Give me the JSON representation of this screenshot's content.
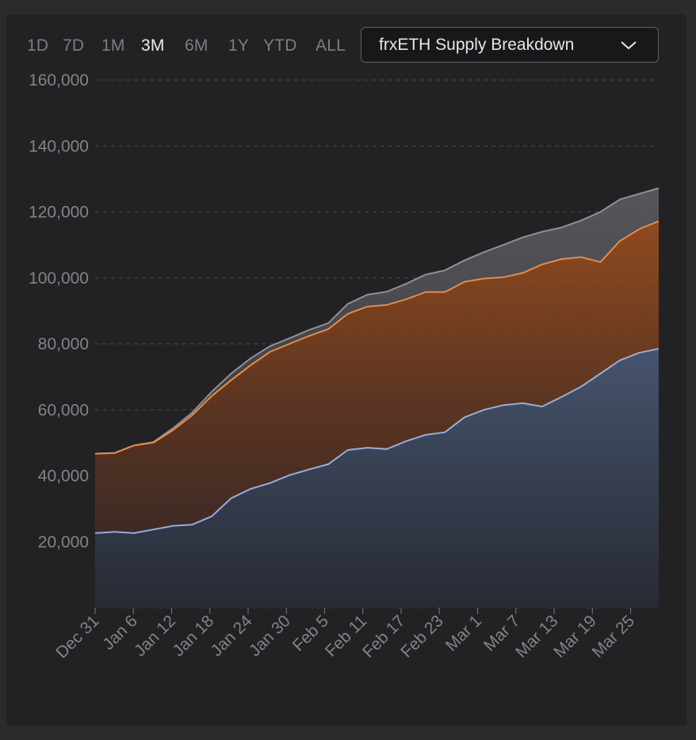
{
  "toolbar": {
    "ranges": [
      "1D",
      "7D",
      "1M",
      "3M",
      "6M",
      "1Y",
      "YTD",
      "ALL"
    ],
    "active_range": "3M",
    "dropdown": {
      "selected": "frxETH Supply Breakdown",
      "icon": "chevron-down-icon"
    }
  },
  "colors": {
    "background": "#222224",
    "total_line": "#909095",
    "total_fill": "#4a4a4e",
    "mid_line": "#f08a3c",
    "mid_fill": "#b25a22",
    "base_line": "#8fb0e6",
    "base_fill": "#3a4458",
    "grid": "#4a4a4f",
    "tick_text": "#838388"
  },
  "chart_data": {
    "type": "area",
    "stacked": true,
    "title": "",
    "xlabel": "",
    "ylabel": "",
    "ylim": [
      0,
      160000
    ],
    "y_ticks": [
      "20,000",
      "40,000",
      "60,000",
      "80,000",
      "100,000",
      "120,000",
      "140,000",
      "160,000"
    ],
    "y_tick_values": [
      20000,
      40000,
      60000,
      80000,
      100000,
      120000,
      140000,
      160000
    ],
    "x_tick_labels": [
      "Dec 31",
      "Jan 6",
      "Jan 12",
      "Jan 18",
      "Jan 24",
      "Jan 30",
      "Feb 5",
      "Feb 11",
      "Feb 17",
      "Feb 23",
      "Mar 1",
      "Mar 7",
      "Mar 13",
      "Mar 19",
      "Mar 25"
    ],
    "grid": "horizontal dashed",
    "legend": "none",
    "x": [
      "Dec 31",
      "Jan 3",
      "Jan 6",
      "Jan 9",
      "Jan 12",
      "Jan 15",
      "Jan 18",
      "Jan 21",
      "Jan 24",
      "Jan 27",
      "Jan 30",
      "Feb 2",
      "Feb 5",
      "Feb 8",
      "Feb 11",
      "Feb 14",
      "Feb 17",
      "Feb 20",
      "Feb 23",
      "Feb 26",
      "Mar 1",
      "Mar 4",
      "Mar 7",
      "Mar 10",
      "Mar 13",
      "Mar 16",
      "Mar 19",
      "Mar 22",
      "Mar 25",
      "Mar 28"
    ],
    "series": [
      {
        "values": [
          22600,
          23000,
          22600,
          23700,
          24800,
          25200,
          27700,
          33200,
          36000,
          37800,
          40200,
          41900,
          43500,
          47800,
          48500,
          48100,
          50500,
          52400,
          53200,
          57700,
          60000,
          61400,
          62000,
          61000,
          63900,
          67000,
          71000,
          75000,
          77300,
          78500
        ]
      },
      {
        "values": [
          46700,
          46900,
          49200,
          50100,
          53800,
          58400,
          64200,
          69000,
          73500,
          77600,
          80000,
          82400,
          84500,
          89100,
          91300,
          91800,
          93500,
          95700,
          95700,
          98800,
          99800,
          100200,
          101500,
          104100,
          105700,
          106300,
          104800,
          111200,
          114800,
          117200
        ]
      },
      {
        "values": [
          46700,
          46900,
          49200,
          50200,
          54400,
          59200,
          65500,
          71000,
          75600,
          79300,
          81700,
          84200,
          86300,
          92100,
          94900,
          95800,
          98200,
          101000,
          102300,
          105300,
          107800,
          110000,
          112300,
          114000,
          115300,
          117400,
          120000,
          123800,
          125500,
          127200
        ]
      }
    ]
  }
}
